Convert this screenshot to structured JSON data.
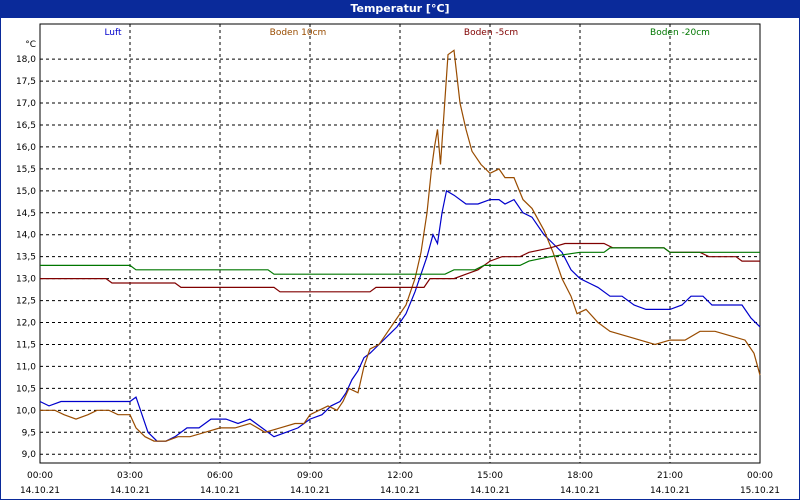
{
  "window": {
    "title": "Temperatur [°C]"
  },
  "chart_data": {
    "type": "line",
    "ylabel": "°C",
    "ylim": [
      8.8,
      18.8
    ],
    "yticks": [
      "9,0",
      "9,5",
      "10,0",
      "10,5",
      "11,0",
      "11,5",
      "12,0",
      "12,5",
      "13,0",
      "13,5",
      "14,0",
      "14,5",
      "15,0",
      "15,5",
      "16,0",
      "16,5",
      "17,0",
      "17,5",
      "18,0"
    ],
    "yticks_values": [
      9,
      9.5,
      10,
      10.5,
      11,
      11.5,
      12,
      12.5,
      13,
      13.5,
      14,
      14.5,
      15,
      15.5,
      16,
      16.5,
      17,
      17.5,
      18
    ],
    "x_range_hours": [
      0,
      24
    ],
    "xticks": [
      {
        "time": "00:00",
        "date": "14.10.21",
        "h": 0
      },
      {
        "time": "03:00",
        "date": "14.10.21",
        "h": 3
      },
      {
        "time": "06:00",
        "date": "14.10.21",
        "h": 6
      },
      {
        "time": "09:00",
        "date": "14.10.21",
        "h": 9
      },
      {
        "time": "12:00",
        "date": "14.10.21",
        "h": 12
      },
      {
        "time": "15:00",
        "date": "14.10.21",
        "h": 15
      },
      {
        "time": "18:00",
        "date": "14.10.21",
        "h": 18
      },
      {
        "time": "21:00",
        "date": "14.10.21",
        "h": 21
      },
      {
        "time": "00:00",
        "date": "15.10.21",
        "h": 24
      }
    ],
    "grid": true,
    "legend_position": "top",
    "series": [
      {
        "name": "Luft",
        "color": "#0000cc",
        "points": [
          [
            0,
            10.2
          ],
          [
            0.3,
            10.1
          ],
          [
            0.7,
            10.2
          ],
          [
            3.0,
            10.2
          ],
          [
            3.2,
            10.3
          ],
          [
            3.4,
            9.9
          ],
          [
            3.6,
            9.5
          ],
          [
            3.9,
            9.3
          ],
          [
            4.2,
            9.3
          ],
          [
            4.5,
            9.4
          ],
          [
            4.9,
            9.6
          ],
          [
            5.3,
            9.6
          ],
          [
            5.7,
            9.8
          ],
          [
            6.2,
            9.8
          ],
          [
            6.6,
            9.7
          ],
          [
            7.0,
            9.8
          ],
          [
            7.4,
            9.6
          ],
          [
            7.8,
            9.4
          ],
          [
            8.2,
            9.5
          ],
          [
            8.6,
            9.6
          ],
          [
            9.0,
            9.8
          ],
          [
            9.4,
            9.9
          ],
          [
            9.7,
            10.1
          ],
          [
            10.0,
            10.2
          ],
          [
            10.2,
            10.4
          ],
          [
            10.4,
            10.7
          ],
          [
            10.6,
            10.9
          ],
          [
            10.8,
            11.2
          ],
          [
            11.0,
            11.3
          ],
          [
            11.3,
            11.5
          ],
          [
            11.6,
            11.7
          ],
          [
            11.9,
            11.9
          ],
          [
            12.2,
            12.2
          ],
          [
            12.5,
            12.7
          ],
          [
            12.7,
            13.1
          ],
          [
            12.9,
            13.5
          ],
          [
            13.1,
            14.0
          ],
          [
            13.25,
            13.8
          ],
          [
            13.4,
            14.5
          ],
          [
            13.55,
            15.0
          ],
          [
            13.8,
            14.9
          ],
          [
            14.2,
            14.7
          ],
          [
            14.6,
            14.7
          ],
          [
            15.0,
            14.8
          ],
          [
            15.3,
            14.8
          ],
          [
            15.5,
            14.7
          ],
          [
            15.8,
            14.8
          ],
          [
            16.1,
            14.5
          ],
          [
            16.4,
            14.4
          ],
          [
            16.8,
            14.0
          ],
          [
            17.1,
            13.8
          ],
          [
            17.4,
            13.6
          ],
          [
            17.7,
            13.2
          ],
          [
            18.0,
            13.0
          ],
          [
            18.3,
            12.9
          ],
          [
            18.6,
            12.8
          ],
          [
            19.0,
            12.6
          ],
          [
            19.4,
            12.6
          ],
          [
            19.8,
            12.4
          ],
          [
            20.2,
            12.3
          ],
          [
            21.0,
            12.3
          ],
          [
            21.4,
            12.4
          ],
          [
            21.7,
            12.6
          ],
          [
            22.1,
            12.6
          ],
          [
            22.4,
            12.4
          ],
          [
            23.0,
            12.4
          ],
          [
            23.4,
            12.4
          ],
          [
            23.7,
            12.1
          ],
          [
            24.0,
            11.9
          ]
        ]
      },
      {
        "name": "Boden 10cm",
        "color": "#994c00",
        "points": [
          [
            0,
            10.0
          ],
          [
            0.5,
            10.0
          ],
          [
            0.8,
            9.9
          ],
          [
            1.2,
            9.8
          ],
          [
            1.6,
            9.9
          ],
          [
            1.9,
            10.0
          ],
          [
            2.3,
            10.0
          ],
          [
            2.6,
            9.9
          ],
          [
            3.0,
            9.9
          ],
          [
            3.2,
            9.6
          ],
          [
            3.5,
            9.4
          ],
          [
            3.8,
            9.3
          ],
          [
            4.2,
            9.3
          ],
          [
            4.6,
            9.4
          ],
          [
            5.0,
            9.4
          ],
          [
            5.5,
            9.5
          ],
          [
            6.0,
            9.6
          ],
          [
            6.5,
            9.6
          ],
          [
            7.0,
            9.7
          ],
          [
            7.5,
            9.5
          ],
          [
            8.0,
            9.6
          ],
          [
            8.5,
            9.7
          ],
          [
            8.8,
            9.7
          ],
          [
            9.0,
            9.9
          ],
          [
            9.3,
            10.0
          ],
          [
            9.6,
            10.1
          ],
          [
            9.9,
            10.0
          ],
          [
            10.1,
            10.2
          ],
          [
            10.3,
            10.5
          ],
          [
            10.6,
            10.4
          ],
          [
            10.8,
            11.0
          ],
          [
            11.0,
            11.4
          ],
          [
            11.3,
            11.5
          ],
          [
            11.6,
            11.8
          ],
          [
            11.9,
            12.1
          ],
          [
            12.2,
            12.4
          ],
          [
            12.5,
            13.0
          ],
          [
            12.7,
            13.6
          ],
          [
            12.9,
            14.5
          ],
          [
            13.05,
            15.5
          ],
          [
            13.15,
            16.0
          ],
          [
            13.25,
            16.4
          ],
          [
            13.35,
            15.6
          ],
          [
            13.45,
            16.6
          ],
          [
            13.6,
            18.1
          ],
          [
            13.8,
            18.2
          ],
          [
            14.0,
            17.0
          ],
          [
            14.2,
            16.4
          ],
          [
            14.4,
            15.9
          ],
          [
            14.7,
            15.6
          ],
          [
            15.0,
            15.4
          ],
          [
            15.3,
            15.5
          ],
          [
            15.5,
            15.3
          ],
          [
            15.8,
            15.3
          ],
          [
            16.1,
            14.8
          ],
          [
            16.4,
            14.6
          ],
          [
            16.8,
            14.1
          ],
          [
            17.1,
            13.6
          ],
          [
            17.4,
            13.0
          ],
          [
            17.7,
            12.6
          ],
          [
            17.9,
            12.2
          ],
          [
            18.2,
            12.3
          ],
          [
            18.6,
            12.0
          ],
          [
            19.0,
            11.8
          ],
          [
            19.5,
            11.7
          ],
          [
            20.0,
            11.6
          ],
          [
            20.5,
            11.5
          ],
          [
            21.0,
            11.6
          ],
          [
            21.5,
            11.6
          ],
          [
            22.0,
            11.8
          ],
          [
            22.5,
            11.8
          ],
          [
            23.0,
            11.7
          ],
          [
            23.5,
            11.6
          ],
          [
            23.8,
            11.3
          ],
          [
            24.0,
            10.8
          ]
        ]
      },
      {
        "name": "Boden -5cm",
        "color": "#800000",
        "points": [
          [
            0,
            13.0
          ],
          [
            2.2,
            13.0
          ],
          [
            2.4,
            12.9
          ],
          [
            4.5,
            12.9
          ],
          [
            4.7,
            12.8
          ],
          [
            7.8,
            12.8
          ],
          [
            8.0,
            12.7
          ],
          [
            11.0,
            12.7
          ],
          [
            11.2,
            12.8
          ],
          [
            12.8,
            12.8
          ],
          [
            13.0,
            13.0
          ],
          [
            13.8,
            13.0
          ],
          [
            14.2,
            13.1
          ],
          [
            14.6,
            13.2
          ],
          [
            15.0,
            13.4
          ],
          [
            15.4,
            13.5
          ],
          [
            16.0,
            13.5
          ],
          [
            16.3,
            13.6
          ],
          [
            17.0,
            13.7
          ],
          [
            17.5,
            13.8
          ],
          [
            18.8,
            13.8
          ],
          [
            19.1,
            13.7
          ],
          [
            20.8,
            13.7
          ],
          [
            21.0,
            13.6
          ],
          [
            22.0,
            13.6
          ],
          [
            22.3,
            13.5
          ],
          [
            23.2,
            13.5
          ],
          [
            23.4,
            13.4
          ],
          [
            24.0,
            13.4
          ]
        ]
      },
      {
        "name": "Boden -20cm",
        "color": "#007700",
        "points": [
          [
            0,
            13.3
          ],
          [
            3.0,
            13.3
          ],
          [
            3.2,
            13.2
          ],
          [
            7.6,
            13.2
          ],
          [
            7.8,
            13.1
          ],
          [
            13.5,
            13.1
          ],
          [
            13.8,
            13.2
          ],
          [
            14.5,
            13.2
          ],
          [
            14.8,
            13.3
          ],
          [
            16.0,
            13.3
          ],
          [
            16.3,
            13.4
          ],
          [
            17.0,
            13.5
          ],
          [
            18.0,
            13.6
          ],
          [
            18.8,
            13.6
          ],
          [
            19.0,
            13.7
          ],
          [
            20.8,
            13.7
          ],
          [
            21.0,
            13.6
          ],
          [
            24.0,
            13.6
          ]
        ]
      }
    ]
  }
}
